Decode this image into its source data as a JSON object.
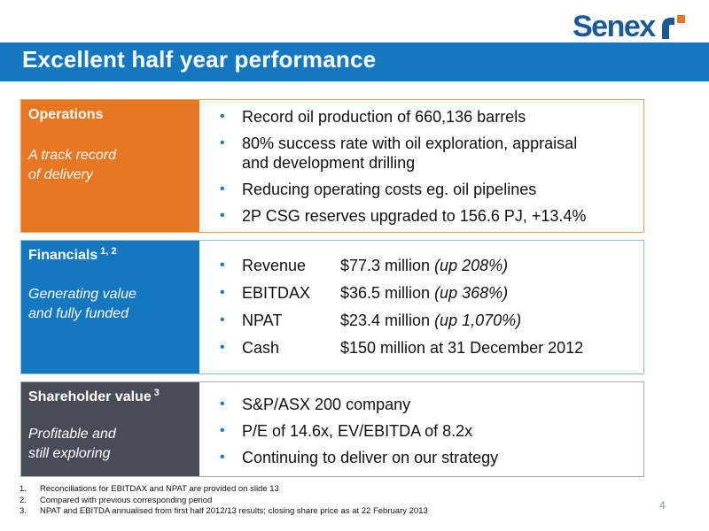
{
  "header": {
    "title": "Excellent half year performance",
    "logo_text": "Senex",
    "brand_color": "#1478c0",
    "logo_color": "#1a5a94"
  },
  "operations": {
    "heading": "Operations",
    "subtitle_line1": "A track record",
    "subtitle_line2": "of delivery",
    "color": "#e87722",
    "bullets": [
      {
        "line1": "Record oil production of 660,136 barrels"
      },
      {
        "line1": "80% success rate with oil exploration, appraisal",
        "line2": "and development drilling"
      },
      {
        "line1": "Reducing operating costs eg. oil pipelines"
      },
      {
        "line1": "2P CSG reserves upgraded to 156.6 PJ, +13.4%"
      }
    ]
  },
  "financials": {
    "heading": "Financials",
    "heading_sup": "1, 2",
    "subtitle_line1": "Generating value",
    "subtitle_line2": "and fully funded",
    "color": "#1478c0",
    "bullets": [
      {
        "label": "Revenue",
        "value": "$77.3 million ",
        "note": "(up 208%)"
      },
      {
        "label": "EBITDAX",
        "value": "$36.5 million ",
        "note": "(up 368%)"
      },
      {
        "label": "NPAT",
        "value": "$23.4 million ",
        "note": "(up 1,070%)"
      },
      {
        "label": "Cash",
        "value": "$150 million at 31 December 2012",
        "note": ""
      }
    ]
  },
  "shareholder": {
    "heading": "Shareholder value",
    "heading_sup": "3",
    "subtitle_line1": "Profitable and",
    "subtitle_line2": "still exploring",
    "color": "#474c55",
    "bullets": [
      "S&P/ASX 200 company",
      "P/E of 14.6x, EV/EBITDA of 8.2x",
      "Continuing to deliver on our strategy"
    ]
  },
  "footnotes": [
    {
      "num": "1.",
      "text": "Reconciliations for EBITDAX and NPAT are provided on slide 13"
    },
    {
      "num": "2.",
      "text": "Compared with previous corresponding period"
    },
    {
      "num": "3.",
      "text": "NPAT and  EBITDA annualised from first half 2012/13 results; closing share price as at 22 February 2013"
    }
  ],
  "page_number": "4"
}
